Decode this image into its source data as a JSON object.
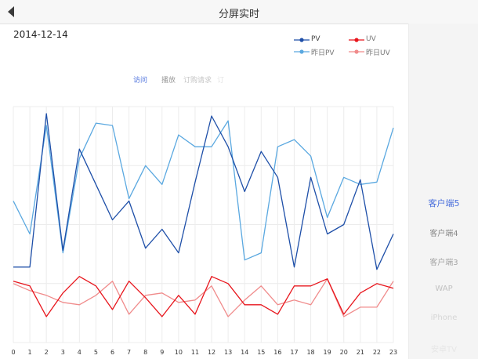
{
  "header": {
    "title": "分屏实时",
    "back_icon": "back-arrow-icon"
  },
  "date": "2014-12-14",
  "legend": [
    {
      "label": "PV",
      "color": "#1e4fa8"
    },
    {
      "label": "UV",
      "color": "#e8151c"
    },
    {
      "label": "昨日PV",
      "color": "#5aa8e0"
    },
    {
      "label": "昨日UV",
      "color": "#f08b8b"
    }
  ],
  "tabs": [
    {
      "label": "访问",
      "active": true
    },
    {
      "label": "播放",
      "active": false
    },
    {
      "label": "订购请求",
      "active": false
    },
    {
      "label": "订",
      "active": false
    }
  ],
  "sidebar": {
    "items": [
      {
        "label": "客户端5",
        "active": true
      },
      {
        "label": "客户端4",
        "active": false
      },
      {
        "label": "客户端3",
        "active": false
      },
      {
        "label": "WAP",
        "active": false
      },
      {
        "label": "iPhone",
        "active": false
      },
      {
        "label": "安卓TV",
        "active": false
      }
    ]
  },
  "chart_data": {
    "type": "line",
    "x": [
      "0",
      "1",
      "2",
      "3",
      "4",
      "5",
      "6",
      "7",
      "8",
      "9",
      "10",
      "11",
      "12",
      "13",
      "14",
      "15",
      "16",
      "17",
      "18",
      "19",
      "20",
      "21",
      "22",
      "23"
    ],
    "ylim": [
      0,
      100
    ],
    "grid": true,
    "legend_position": "top-right",
    "series": [
      {
        "name": "PV",
        "color": "#1e4fa8",
        "values": [
          32,
          32,
          97,
          39,
          82,
          67,
          52,
          60,
          40,
          48,
          38,
          68,
          96,
          83,
          64,
          81,
          70,
          32,
          70,
          46,
          50,
          69,
          31,
          46
        ]
      },
      {
        "name": "UV",
        "color": "#e8151c",
        "values": [
          26,
          24,
          11,
          21,
          28,
          24,
          14,
          26,
          19,
          11,
          20,
          12,
          28,
          25,
          16,
          16,
          12,
          24,
          24,
          27,
          12,
          21,
          25,
          23
        ]
      },
      {
        "name": "昨日PV",
        "color": "#5aa8e0",
        "values": [
          60,
          46,
          92,
          38,
          78,
          93,
          92,
          61,
          75,
          67,
          88,
          83,
          83,
          94,
          35,
          38,
          83,
          86,
          79,
          53,
          70,
          67,
          68,
          91
        ]
      },
      {
        "name": "昨日UV",
        "color": "#f08b8b",
        "values": [
          25,
          22,
          20,
          17,
          16,
          20,
          26,
          12,
          20,
          21,
          17,
          18,
          24,
          11,
          18,
          24,
          16,
          18,
          16,
          27,
          11,
          15,
          15,
          26
        ]
      }
    ]
  }
}
